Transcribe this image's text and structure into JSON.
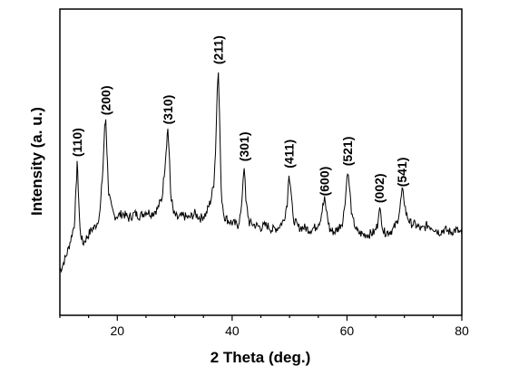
{
  "chart_data": {
    "type": "line",
    "xlabel": "2 Theta (deg.)",
    "ylabel": "Intensity (a. u.)",
    "xlim": [
      10,
      80
    ],
    "ylim": [
      0,
      100
    ],
    "x_ticks": [
      20,
      40,
      60,
      80
    ],
    "y_ticks_shown": false,
    "grid": false,
    "legend": "none",
    "line_color": "#000000",
    "series": [
      {
        "x": [
          10.0,
          10.5,
          11.0,
          11.5,
          12.0,
          12.5,
          12.8,
          13.0,
          13.2,
          13.5,
          14.0,
          14.5,
          15.0,
          15.5,
          16.0,
          16.5,
          17.0,
          17.5,
          17.8,
          18.0,
          18.2,
          18.5,
          19.0,
          19.5,
          20.0,
          21.0,
          22.0,
          23.0,
          24.0,
          25.0,
          26.0,
          27.0,
          27.8,
          28.3,
          28.6,
          28.8,
          29.0,
          29.3,
          29.8,
          30.5,
          31.5,
          32.5,
          33.5,
          34.5,
          35.5,
          36.3,
          36.8,
          37.1,
          37.4,
          37.6,
          37.8,
          38.1,
          38.6,
          39.3,
          40.0,
          41.0,
          41.6,
          41.9,
          42.1,
          42.4,
          43.0,
          44.0,
          45.0,
          46.0,
          47.0,
          48.0,
          49.0,
          49.6,
          49.9,
          50.2,
          50.6,
          51.5,
          52.5,
          53.5,
          54.5,
          55.3,
          55.8,
          56.1,
          56.5,
          57.0,
          57.8,
          58.6,
          59.3,
          59.8,
          60.1,
          60.4,
          60.9,
          61.8,
          62.8,
          63.8,
          64.8,
          65.3,
          65.6,
          65.9,
          66.4,
          67.2,
          68.0,
          68.7,
          69.2,
          69.6,
          69.9,
          70.3,
          71.0,
          72.0,
          73.0,
          74.0,
          75.0,
          76.0,
          77.0,
          78.0,
          79.0,
          80.0
        ],
        "values": [
          10,
          13,
          16,
          20,
          25,
          30,
          44,
          58,
          46,
          28,
          22,
          24,
          26,
          28,
          29,
          31,
          36,
          55,
          72,
          76,
          62,
          44,
          37,
          34,
          34,
          35,
          33,
          35,
          34,
          36,
          35,
          37,
          42,
          56,
          66,
          72,
          63,
          44,
          35,
          33,
          34,
          33,
          35,
          33,
          35,
          41,
          48,
          62,
          88,
          98,
          78,
          44,
          34,
          32,
          31,
          30,
          36,
          50,
          56,
          40,
          31,
          30,
          29,
          30,
          28,
          29,
          32,
          40,
          53,
          46,
          33,
          29,
          29,
          28,
          29,
          32,
          38,
          41,
          35,
          28,
          27,
          29,
          32,
          44,
          54,
          47,
          33,
          27,
          26,
          26,
          27,
          30,
          38,
          34,
          27,
          27,
          28,
          31,
          37,
          45,
          42,
          35,
          31,
          30,
          28,
          30,
          29,
          27,
          28,
          27,
          28,
          26
        ]
      }
    ],
    "annotations": [
      {
        "text": "(110)",
        "x": 13.0,
        "y": 58
      },
      {
        "text": "(200)",
        "x": 18.0,
        "y": 76
      },
      {
        "text": "(310)",
        "x": 28.8,
        "y": 72
      },
      {
        "text": "(211)",
        "x": 37.6,
        "y": 98
      },
      {
        "text": "(301)",
        "x": 42.1,
        "y": 56
      },
      {
        "text": "(411)",
        "x": 49.9,
        "y": 53
      },
      {
        "text": "(600)",
        "x": 56.1,
        "y": 41
      },
      {
        "text": "(521)",
        "x": 60.1,
        "y": 54
      },
      {
        "text": "(002)",
        "x": 65.6,
        "y": 38
      },
      {
        "text": "(541)",
        "x": 69.6,
        "y": 45
      }
    ]
  }
}
